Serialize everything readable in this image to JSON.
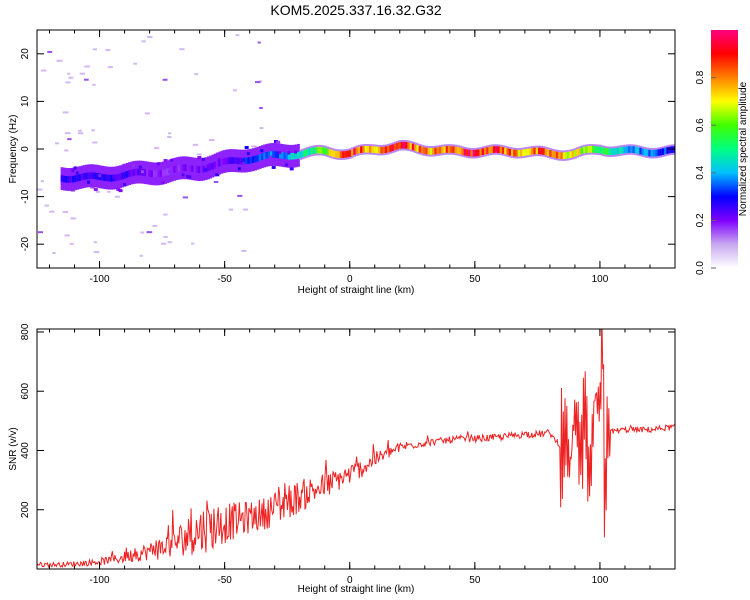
{
  "page": {
    "title": "KOM5.2025.337.16.32.G32"
  },
  "chart_data": [
    {
      "type": "heatmap",
      "title": "KOM5.2025.337.16.32.G32",
      "xlabel": "Height of straight line (km)",
      "ylabel": "Frequency (Hz)",
      "xlim": [
        -125,
        130
      ],
      "ylim": [
        -25,
        25
      ],
      "xticks": [
        -100,
        -50,
        0,
        50,
        100
      ],
      "xtick_labels": [
        "-100",
        "-50",
        "0",
        "50",
        "100"
      ],
      "yticks": [
        -20,
        -10,
        0,
        10,
        20
      ],
      "ytick_labels": [
        "-20",
        "-10",
        "0",
        "10",
        "20"
      ],
      "ridge": {
        "description": "frequency of peak spectral amplitude vs height",
        "x": [
          -110,
          -100,
          -90,
          -80,
          -70,
          -60,
          -50,
          -40,
          -30,
          -20,
          -10,
          0,
          10,
          20,
          30,
          40,
          50,
          60,
          70,
          80,
          90,
          100,
          110,
          120,
          130
        ],
        "freq": [
          -6,
          -6,
          -5.5,
          -5,
          -4.5,
          -4,
          -3,
          -2,
          -1.5,
          -1,
          -0.5,
          -1,
          0,
          0.5,
          0,
          -0.5,
          -0.5,
          -0.5,
          -0.5,
          -1,
          -1,
          0,
          -0.5,
          -0.5,
          -0.5
        ],
        "amplitude": [
          0.25,
          0.28,
          0.25,
          0.2,
          0.18,
          0.2,
          0.22,
          0.3,
          0.35,
          0.45,
          0.6,
          0.9,
          0.7,
          0.95,
          0.75,
          0.8,
          0.95,
          0.85,
          0.75,
          0.8,
          0.7,
          0.55,
          0.4,
          0.35,
          0.3
        ]
      },
      "colorbar": {
        "label": "Normalized spectral amplitude",
        "range": [
          0,
          1
        ],
        "ticks": [
          0.0,
          0.2,
          0.4,
          0.6,
          0.8
        ],
        "tick_labels": [
          "0.0",
          "0.2",
          "0.4",
          "0.6",
          "0.8"
        ],
        "colormap": [
          "#ffffff",
          "#c8a8f0",
          "#8000ff",
          "#0000ff",
          "#00c0ff",
          "#00ff80",
          "#40ff00",
          "#ffff00",
          "#ff8000",
          "#ff0000",
          "#ff0080"
        ]
      }
    },
    {
      "type": "line",
      "xlabel": "Height of straight line (km)",
      "ylabel": "SNR (v/v)",
      "xlim": [
        -125,
        130
      ],
      "ylim": [
        0,
        810
      ],
      "xticks": [
        -100,
        -50,
        0,
        50,
        100
      ],
      "xtick_labels": [
        "-100",
        "-50",
        "0",
        "50",
        "100"
      ],
      "yticks": [
        200,
        400,
        600,
        800
      ],
      "ytick_labels": [
        "200",
        "400",
        "600",
        "800"
      ],
      "color": "#ee2222",
      "series": [
        {
          "name": "SNR",
          "x": [
            -125,
            -115,
            -105,
            -100,
            -95,
            -90,
            -85,
            -80,
            -75,
            -70,
            -65,
            -60,
            -55,
            -50,
            -45,
            -40,
            -35,
            -30,
            -25,
            -20,
            -15,
            -10,
            -5,
            0,
            5,
            10,
            15,
            20,
            25,
            30,
            35,
            40,
            45,
            50,
            55,
            60,
            65,
            70,
            75,
            80,
            85,
            86,
            88,
            90,
            92,
            94,
            96,
            98,
            100,
            101,
            102,
            103,
            105,
            110,
            120,
            130
          ],
          "values": [
            15,
            15,
            20,
            25,
            30,
            40,
            50,
            60,
            70,
            90,
            110,
            130,
            145,
            155,
            165,
            175,
            185,
            205,
            225,
            245,
            265,
            280,
            300,
            320,
            340,
            370,
            390,
            410,
            420,
            425,
            430,
            435,
            440,
            440,
            442,
            445,
            450,
            455,
            455,
            460,
            400,
            520,
            330,
            540,
            380,
            560,
            300,
            600,
            520,
            810,
            140,
            470,
            465,
            470,
            470,
            480
          ],
          "noise_amplitude": [
            8,
            8,
            10,
            12,
            15,
            20,
            25,
            30,
            40,
            50,
            65,
            80,
            85,
            70,
            60,
            55,
            55,
            60,
            60,
            55,
            50,
            45,
            40,
            35,
            30,
            25,
            20,
            18,
            15,
            12,
            12,
            12,
            12,
            12,
            12,
            12,
            12,
            12,
            12,
            12,
            0,
            0,
            0,
            0,
            0,
            0,
            0,
            0,
            0,
            0,
            0,
            0,
            10,
            10,
            10,
            10
          ]
        }
      ]
    }
  ]
}
